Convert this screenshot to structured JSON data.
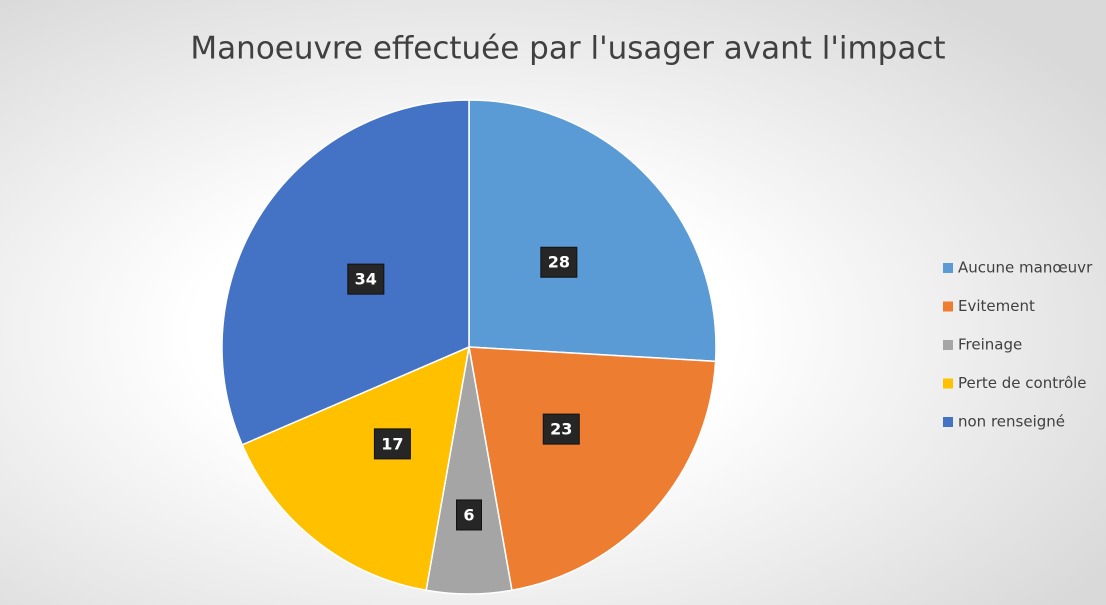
{
  "chart_data": {
    "type": "pie",
    "title": "Manoeuvre effectuée par l'usager avant l'impact",
    "categories": [
      "Aucune manœuvr",
      "Evitement",
      "Freinage",
      "Perte de contrôle",
      "non renseigné"
    ],
    "values": [
      28,
      23,
      6,
      17,
      34
    ],
    "colors": [
      "#5b9bd5",
      "#ed7d31",
      "#a5a5a5",
      "#ffc000",
      "#4472c4"
    ],
    "legend": "right"
  }
}
